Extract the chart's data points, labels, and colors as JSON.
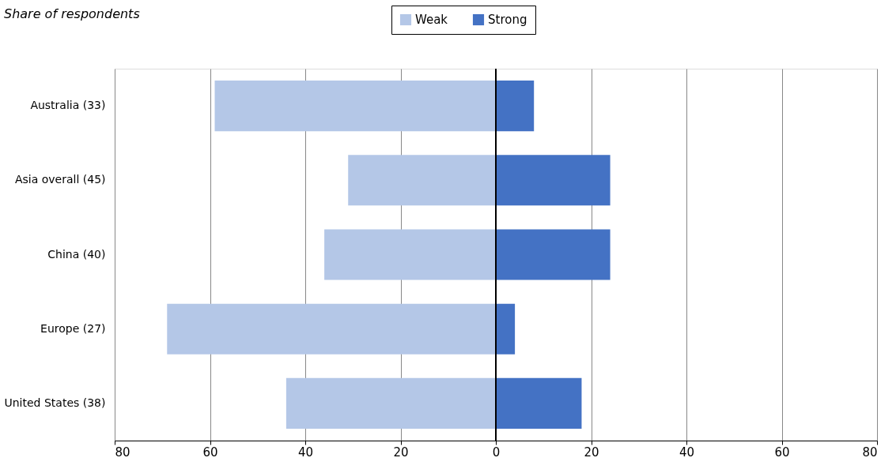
{
  "chart_data": {
    "type": "bar",
    "orientation": "horizontal",
    "stacked": true,
    "title": "Share of respondents",
    "categories": [
      "Australia (33)",
      "Asia overall (45)",
      "China (40)",
      "Europe (27)",
      "United States (38)"
    ],
    "series": [
      {
        "name": "Weak",
        "color": "#b4c7e7",
        "values": [
          -59,
          -31,
          -36,
          -69,
          -44
        ]
      },
      {
        "name": "Strong",
        "color": "#4472c4",
        "values": [
          8,
          24,
          24,
          4,
          18
        ]
      }
    ],
    "xlim": [
      -80,
      80
    ],
    "xticks": [
      {
        "value": -80,
        "label": "80"
      },
      {
        "value": -60,
        "label": "60"
      },
      {
        "value": -40,
        "label": "40"
      },
      {
        "value": -20,
        "label": "20"
      },
      0,
      20,
      40,
      60,
      80
    ],
    "ref_lines": [
      {
        "axis": "x",
        "value": 0,
        "color": "#000000"
      }
    ],
    "grid": "x",
    "legend": "top"
  }
}
